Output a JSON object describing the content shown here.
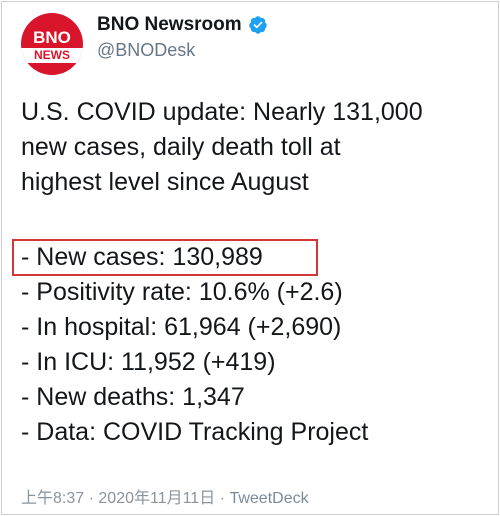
{
  "tweet": {
    "avatar": {
      "logo_top": "BNO",
      "logo_bottom": "NEWS"
    },
    "display_name": "BNO Newsroom",
    "verified": true,
    "handle": "@BNODesk",
    "headline_lines": [
      "U.S. COVID update: Nearly 131,000",
      "new cases, daily death toll at",
      "highest level since August"
    ],
    "stats": [
      "- New cases: 130,989",
      "- Positivity rate: 10.6% (+2.6)",
      "- In hospital: 61,964 (+2,690)",
      "- In ICU: 11,952 (+419)",
      "- New deaths: 1,347",
      "- Data: COVID Tracking Project"
    ],
    "time": "上午8:37",
    "separator": "·",
    "date": "2020年11月11日",
    "source": "TweetDeck"
  },
  "colors": {
    "brand_red": "#d9152c",
    "verified_blue": "#1da1f2",
    "highlight_red": "#d23636"
  },
  "icons": {
    "verified": "verified-badge-icon"
  }
}
